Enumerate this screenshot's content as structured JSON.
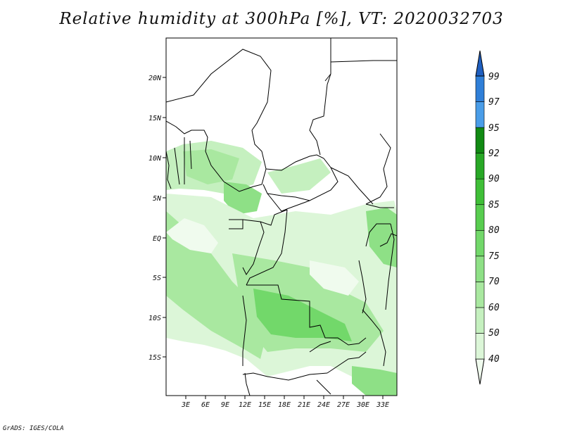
{
  "title": "Relative humidity at 300hPa [%], VT: 2020032703",
  "credit": "GrADS: IGES/COLA",
  "map": {
    "lon_labels": [
      "3E",
      "6E",
      "9E",
      "12E",
      "15E",
      "18E",
      "21E",
      "24E",
      "27E",
      "30E",
      "33E"
    ],
    "lat_labels": [
      "20N",
      "15N",
      "10N",
      "5N",
      "EQ",
      "5S",
      "10S",
      "15S"
    ]
  },
  "colorbar": {
    "levels": [
      "40",
      "50",
      "60",
      "70",
      "75",
      "80",
      "85",
      "90",
      "92",
      "95",
      "97",
      "99"
    ],
    "colors": [
      "#f0fbee",
      "#dcf6d8",
      "#c5f0bf",
      "#a9e8a0",
      "#8ee086",
      "#72d86a",
      "#58cd4f",
      "#3fbf37",
      "#28a826",
      "#118a13",
      "#4a9de8",
      "#2f7fd8",
      "#1f5fc0"
    ]
  }
}
